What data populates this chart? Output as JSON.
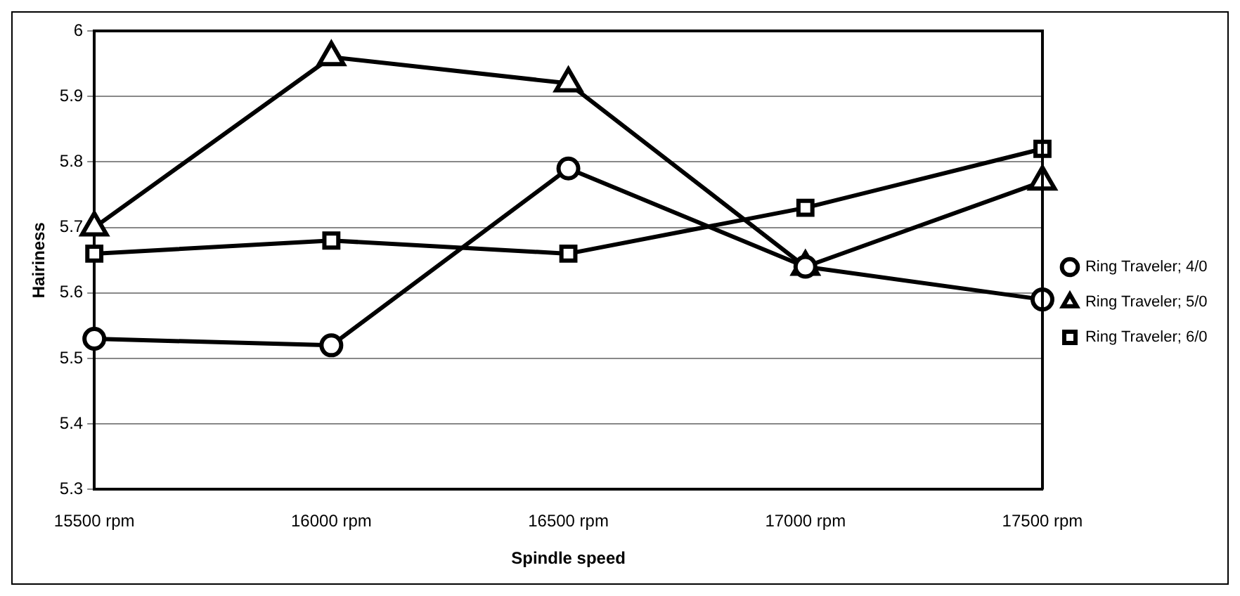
{
  "chart_data": {
    "type": "line",
    "xlabel": "Spindle speed",
    "ylabel": "Hairiness",
    "categories": [
      "15500 rpm",
      "16000 rpm",
      "16500 rpm",
      "17000 rpm",
      "17500 rpm"
    ],
    "series": [
      {
        "name": "Ring Traveler; 4/0",
        "color": "#000000",
        "marker": "circle",
        "values": [
          5.53,
          5.52,
          5.79,
          5.64,
          5.59
        ]
      },
      {
        "name": "Ring Traveler; 5/0",
        "color": "#000000",
        "marker": "triangle",
        "values": [
          5.7,
          5.96,
          5.92,
          5.64,
          5.77
        ]
      },
      {
        "name": "Ring Traveler; 6/0",
        "color": "#000000",
        "marker": "square",
        "values": [
          5.66,
          5.68,
          5.66,
          5.73,
          5.82
        ]
      }
    ],
    "ylim": [
      5.3,
      6
    ],
    "yticks": [
      5.3,
      5.4,
      5.5,
      5.6,
      5.7,
      5.8,
      5.9,
      6
    ],
    "grid": "y",
    "legend": "right",
    "line_style": "solid"
  }
}
